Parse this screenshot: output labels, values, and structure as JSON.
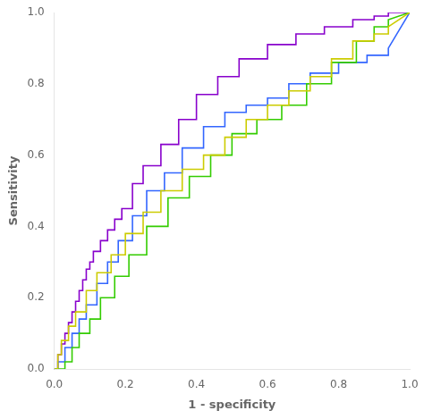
{
  "chart_data": {
    "type": "line",
    "xlabel": "1 - specificity",
    "ylabel": "Sensitivity",
    "xlim": [
      0.0,
      1.0
    ],
    "ylim": [
      0.0,
      1.0
    ],
    "xticks": [
      {
        "value": 0.0,
        "label": "0.0"
      },
      0.2,
      0.4,
      0.6,
      0.8,
      {
        "value": 1.0,
        "label": "1.0"
      }
    ],
    "yticks": [
      {
        "value": 0.0,
        "label": "0.0"
      },
      0.2,
      0.4,
      0.6,
      0.8,
      {
        "value": 1.0,
        "label": "1.0"
      }
    ],
    "grid": false,
    "series": [
      {
        "color": "#cccc00",
        "x": [
          0.0,
          0.01,
          0.01,
          0.02,
          0.02,
          0.04,
          0.04,
          0.06,
          0.06,
          0.09,
          0.09,
          0.12,
          0.12,
          0.16,
          0.16,
          0.2,
          0.2,
          0.25,
          0.25,
          0.3,
          0.3,
          0.36,
          0.36,
          0.42,
          0.42,
          0.48,
          0.48,
          0.54,
          0.54,
          0.6,
          0.6,
          0.66,
          0.66,
          0.72,
          0.72,
          0.78,
          0.78,
          0.84,
          0.84,
          0.9,
          0.9,
          0.94,
          0.94,
          1.0
        ],
        "values": [
          0.0,
          0.0,
          0.04,
          0.04,
          0.08,
          0.08,
          0.12,
          0.12,
          0.16,
          0.16,
          0.22,
          0.22,
          0.27,
          0.27,
          0.32,
          0.32,
          0.38,
          0.38,
          0.44,
          0.44,
          0.5,
          0.5,
          0.56,
          0.56,
          0.6,
          0.6,
          0.65,
          0.65,
          0.7,
          0.7,
          0.74,
          0.74,
          0.78,
          0.78,
          0.82,
          0.82,
          0.87,
          0.87,
          0.92,
          0.92,
          0.94,
          0.94,
          0.96,
          1.0
        ]
      },
      {
        "color": "#33cc00",
        "x": [
          0.0,
          0.01,
          0.01,
          0.03,
          0.03,
          0.05,
          0.05,
          0.07,
          0.07,
          0.1,
          0.1,
          0.13,
          0.13,
          0.17,
          0.17,
          0.21,
          0.21,
          0.26,
          0.26,
          0.32,
          0.32,
          0.38,
          0.38,
          0.44,
          0.44,
          0.5,
          0.5,
          0.57,
          0.57,
          0.64,
          0.64,
          0.71,
          0.71,
          0.78,
          0.78,
          0.85,
          0.85,
          0.9,
          0.9,
          0.94,
          0.94,
          1.0
        ],
        "values": [
          0.0,
          0.0,
          0.0,
          0.0,
          0.02,
          0.02,
          0.06,
          0.06,
          0.1,
          0.1,
          0.14,
          0.14,
          0.2,
          0.2,
          0.26,
          0.26,
          0.32,
          0.32,
          0.4,
          0.4,
          0.48,
          0.48,
          0.54,
          0.54,
          0.6,
          0.6,
          0.66,
          0.66,
          0.7,
          0.7,
          0.74,
          0.74,
          0.8,
          0.8,
          0.86,
          0.86,
          0.92,
          0.92,
          0.96,
          0.96,
          0.98,
          1.0
        ]
      },
      {
        "color": "#3366ff",
        "x": [
          0.0,
          0.01,
          0.01,
          0.03,
          0.03,
          0.05,
          0.05,
          0.07,
          0.07,
          0.09,
          0.09,
          0.12,
          0.12,
          0.15,
          0.15,
          0.18,
          0.18,
          0.22,
          0.22,
          0.26,
          0.26,
          0.31,
          0.31,
          0.36,
          0.36,
          0.42,
          0.42,
          0.48,
          0.48,
          0.54,
          0.54,
          0.6,
          0.6,
          0.66,
          0.66,
          0.72,
          0.72,
          0.8,
          0.8,
          0.88,
          0.88,
          0.94,
          0.94,
          1.0
        ],
        "values": [
          0.0,
          0.0,
          0.02,
          0.02,
          0.06,
          0.06,
          0.1,
          0.1,
          0.14,
          0.14,
          0.18,
          0.18,
          0.24,
          0.24,
          0.3,
          0.3,
          0.36,
          0.36,
          0.43,
          0.43,
          0.5,
          0.5,
          0.55,
          0.55,
          0.62,
          0.62,
          0.68,
          0.68,
          0.72,
          0.72,
          0.74,
          0.74,
          0.76,
          0.76,
          0.8,
          0.8,
          0.83,
          0.83,
          0.86,
          0.86,
          0.88,
          0.88,
          0.9,
          1.0
        ]
      },
      {
        "color": "#8800cc",
        "x": [
          0.0,
          0.01,
          0.01,
          0.02,
          0.02,
          0.03,
          0.03,
          0.04,
          0.04,
          0.05,
          0.05,
          0.06,
          0.06,
          0.07,
          0.07,
          0.08,
          0.08,
          0.09,
          0.09,
          0.1,
          0.1,
          0.11,
          0.11,
          0.13,
          0.13,
          0.15,
          0.15,
          0.17,
          0.17,
          0.19,
          0.19,
          0.22,
          0.22,
          0.25,
          0.25,
          0.3,
          0.3,
          0.35,
          0.35,
          0.4,
          0.4,
          0.46,
          0.46,
          0.52,
          0.52,
          0.6,
          0.6,
          0.68,
          0.68,
          0.76,
          0.76,
          0.84,
          0.84,
          0.9,
          0.9,
          0.94,
          0.94,
          1.0
        ],
        "values": [
          0.0,
          0.0,
          0.04,
          0.04,
          0.07,
          0.07,
          0.1,
          0.1,
          0.13,
          0.13,
          0.16,
          0.16,
          0.19,
          0.19,
          0.22,
          0.22,
          0.25,
          0.25,
          0.28,
          0.28,
          0.3,
          0.3,
          0.33,
          0.33,
          0.36,
          0.36,
          0.39,
          0.39,
          0.42,
          0.42,
          0.45,
          0.45,
          0.52,
          0.52,
          0.57,
          0.57,
          0.63,
          0.63,
          0.7,
          0.7,
          0.77,
          0.77,
          0.82,
          0.82,
          0.87,
          0.87,
          0.91,
          0.91,
          0.94,
          0.94,
          0.96,
          0.96,
          0.98,
          0.98,
          0.99,
          0.99,
          1.0,
          1.0
        ]
      }
    ]
  }
}
